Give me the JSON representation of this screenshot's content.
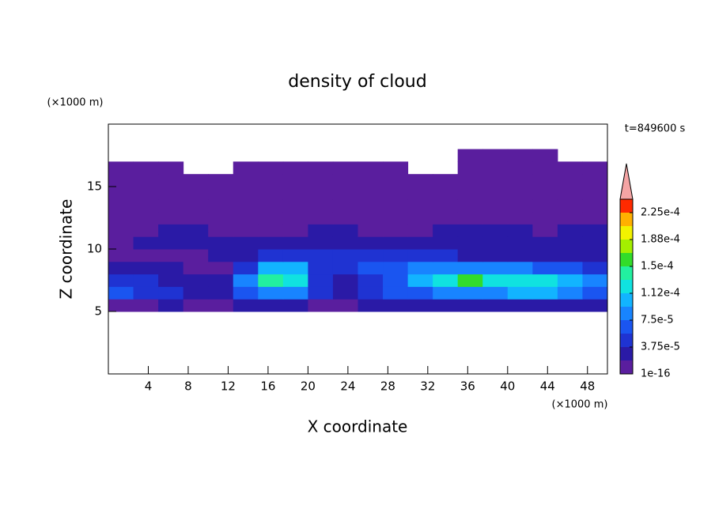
{
  "chart_data": {
    "type": "contour",
    "title": "density of cloud",
    "xlabel": "X coordinate",
    "ylabel": "Z coordinate",
    "x_unit": "(×1000 m)",
    "y_unit": "(×1000 m)",
    "time_label": "t=849600 s",
    "xlim": [
      0,
      50
    ],
    "ylim": [
      0,
      20
    ],
    "xticks": [
      4,
      8,
      12,
      16,
      20,
      24,
      28,
      32,
      36,
      40,
      44,
      48
    ],
    "yticks": [
      5,
      10,
      15
    ],
    "x": [
      1.25,
      3.75,
      6.25,
      8.75,
      11.25,
      13.75,
      16.25,
      18.75,
      21.25,
      23.75,
      26.25,
      28.75,
      31.25,
      33.75,
      36.25,
      38.75,
      41.25,
      43.75,
      46.25,
      48.75
    ],
    "y": [
      5.5,
      6.5,
      7.5,
      8.5,
      9.5,
      10.5,
      11.5,
      12.5,
      13.5,
      14.5,
      15.5,
      16.5,
      17.5
    ],
    "z": [
      [
        1e-05,
        1e-05,
        2e-05,
        1e-05,
        1e-05,
        2e-05,
        3e-05,
        3e-05,
        1e-05,
        1e-05,
        2e-05,
        2e-05,
        2e-05,
        3e-05,
        3e-05,
        3e-05,
        3e-05,
        3e-05,
        2e-05,
        2e-05
      ],
      [
        7e-05,
        5e-05,
        4e-05,
        3e-05,
        2e-05,
        6e-05,
        8e-05,
        8e-05,
        4e-05,
        2e-05,
        4e-05,
        6e-05,
        7e-05,
        8e-05,
        9e-05,
        9e-05,
        0.0001,
        0.0001,
        8e-05,
        6e-05
      ],
      [
        5e-05,
        4e-05,
        3e-05,
        2e-05,
        2e-05,
        9e-05,
        0.00014,
        0.00013,
        5e-05,
        3e-05,
        5e-05,
        7e-05,
        0.0001,
        0.00013,
        0.00015,
        0.00013,
        0.00012,
        0.00013,
        0.00011,
        8e-05
      ],
      [
        2e-05,
        2e-05,
        2e-05,
        1e-05,
        1e-05,
        4e-05,
        0.00011,
        0.0001,
        5e-05,
        4e-05,
        6e-05,
        6e-05,
        8e-05,
        9e-05,
        9e-05,
        8e-05,
        8e-05,
        7e-05,
        6e-05,
        4e-05
      ],
      [
        1e-05,
        1e-05,
        1e-05,
        1e-05,
        2e-05,
        3e-05,
        4e-05,
        4e-05,
        5e-05,
        5e-05,
        5e-05,
        4e-05,
        4e-05,
        4e-05,
        3e-05,
        3e-05,
        3e-05,
        3e-05,
        3e-05,
        2e-05
      ],
      [
        1e-05,
        2e-05,
        2e-05,
        2e-05,
        2e-05,
        2e-05,
        2e-05,
        3e-05,
        3e-05,
        2e-05,
        2e-05,
        2e-05,
        2e-05,
        2e-05,
        2e-05,
        3e-05,
        2e-05,
        2e-05,
        2e-05,
        2e-05
      ],
      [
        1e-05,
        1e-05,
        2e-05,
        2e-05,
        1e-05,
        1e-05,
        1e-05,
        1e-05,
        2e-05,
        2e-05,
        1e-05,
        1e-05,
        1e-05,
        2e-05,
        2e-05,
        2e-05,
        2e-05,
        1e-05,
        2e-05,
        2e-05
      ],
      [
        1e-05,
        1e-05,
        1e-05,
        1e-05,
        1e-05,
        1e-05,
        1e-05,
        1e-05,
        1e-05,
        1e-05,
        1e-05,
        1e-05,
        1e-05,
        1e-05,
        1e-05,
        1e-05,
        1e-05,
        1e-05,
        1e-05,
        1e-05
      ],
      [
        5e-06,
        5e-06,
        5e-06,
        5e-06,
        5e-06,
        5e-06,
        5e-06,
        5e-06,
        5e-06,
        5e-06,
        5e-06,
        5e-06,
        5e-06,
        5e-06,
        5e-06,
        5e-06,
        5e-06,
        5e-06,
        5e-06,
        5e-06
      ],
      [
        5e-06,
        5e-06,
        5e-06,
        5e-06,
        5e-06,
        5e-06,
        5e-06,
        5e-06,
        5e-06,
        5e-06,
        5e-06,
        5e-06,
        5e-06,
        5e-06,
        5e-06,
        5e-06,
        5e-06,
        5e-06,
        5e-06,
        5e-06
      ],
      [
        5e-06,
        5e-06,
        5e-06,
        5e-06,
        5e-06,
        5e-06,
        5e-06,
        5e-06,
        5e-06,
        5e-06,
        5e-06,
        5e-06,
        5e-06,
        5e-06,
        5e-06,
        5e-06,
        5e-06,
        5e-06,
        5e-06,
        5e-06
      ],
      [
        5e-06,
        5e-06,
        5e-06,
        null,
        null,
        5e-06,
        5e-06,
        5e-06,
        5e-06,
        5e-06,
        5e-06,
        5e-06,
        null,
        null,
        5e-06,
        5e-06,
        5e-06,
        5e-06,
        5e-06,
        5e-06
      ],
      [
        null,
        null,
        null,
        null,
        null,
        null,
        null,
        null,
        null,
        null,
        null,
        null,
        null,
        null,
        5e-06,
        5e-06,
        5e-06,
        5e-06,
        null,
        null
      ]
    ],
    "levels": [
      1e-16,
      1.875e-05,
      3.75e-05,
      5.625e-05,
      7.5e-05,
      9.375e-05,
      0.0001125,
      0.00013125,
      0.00015,
      0.00016875,
      0.0001875,
      0.00020625,
      0.000225,
      0.00024375
    ],
    "colors": [
      "#5a1e9e",
      "#2a1aa6",
      "#1f33d2",
      "#1a55f0",
      "#1884ff",
      "#12b4ff",
      "#10e2e0",
      "#22f0a0",
      "#32dc2a",
      "#a4ef00",
      "#f2f200",
      "#ffb000",
      "#ff2a00"
    ],
    "extend_color": "#f4a4a4",
    "colorbar_ticks": [
      1e-16,
      {
        "value": 3.75e-05,
        "label": "3.75e-5"
      },
      {
        "value": 7.5e-05,
        "label": "7.5e-5"
      },
      {
        "value": 0.0001125,
        "label": "1.12e-4"
      },
      {
        "value": 0.00015,
        "label": "1.5e-4"
      },
      {
        "value": 0.0001875,
        "label": "1.88e-4"
      },
      {
        "value": 0.000225,
        "label": "2.25e-4"
      }
    ]
  }
}
